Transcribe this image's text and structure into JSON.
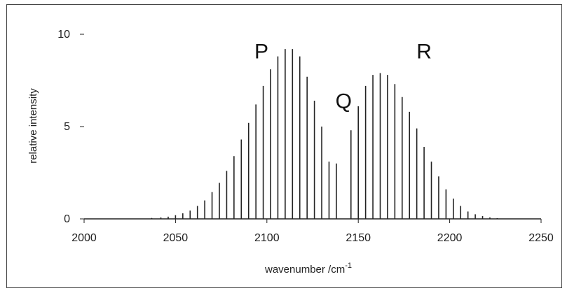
{
  "chart_data": {
    "type": "bar",
    "title": "",
    "xlabel": "wavenumber /cm",
    "xlabel_superscript": "-1",
    "ylabel": "relative intensity",
    "xlim": [
      2000,
      2250
    ],
    "ylim": [
      0,
      10
    ],
    "xticks": [
      "2000",
      "2050",
      "2100",
      "2150",
      "2200",
      "2250"
    ],
    "yticks": [
      "0",
      "5",
      "10"
    ],
    "grid": false,
    "legend": "none",
    "bar_color": "#222222",
    "annotations": [
      {
        "text": "P",
        "x": 2097,
        "y": 8.7
      },
      {
        "text": "Q",
        "x": 2142,
        "y": 6.0
      },
      {
        "text": "R",
        "x": 2186,
        "y": 8.7
      }
    ],
    "series": [
      {
        "x": [
          2037,
          2042,
          2046,
          2050,
          2054,
          2058,
          2062,
          2066,
          2070,
          2074,
          2078,
          2082,
          2086,
          2090,
          2094,
          2098,
          2102,
          2106,
          2110,
          2114,
          2118,
          2122,
          2126,
          2130,
          2134,
          2138,
          2146,
          2150,
          2154,
          2158,
          2162,
          2166,
          2170,
          2174,
          2178,
          2182,
          2186,
          2190,
          2194,
          2198,
          2202,
          2206,
          2210,
          2214,
          2218,
          2222,
          2226
        ],
        "y": [
          0.05,
          0.08,
          0.12,
          0.2,
          0.3,
          0.45,
          0.7,
          1.0,
          1.45,
          1.95,
          2.6,
          3.4,
          4.3,
          5.2,
          6.2,
          7.2,
          8.1,
          8.8,
          9.2,
          9.2,
          8.8,
          7.7,
          6.4,
          5.0,
          3.1,
          3.0,
          4.8,
          6.1,
          7.2,
          7.8,
          7.9,
          7.8,
          7.3,
          6.6,
          5.8,
          4.9,
          3.9,
          3.1,
          2.3,
          1.6,
          1.1,
          0.7,
          0.4,
          0.25,
          0.15,
          0.08,
          0.04
        ]
      }
    ]
  }
}
